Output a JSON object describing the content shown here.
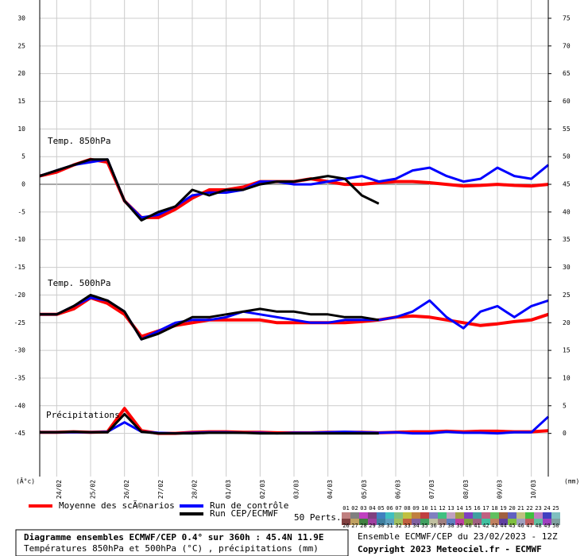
{
  "chart_data": {
    "type": "line",
    "panel_labels": [
      "Temp. 850hPa",
      "Temp. 500hPa",
      "Précipitations"
    ],
    "ylabel": "(Â°c)",
    "y2label": "(mm)",
    "x": [
      0,
      12,
      24,
      36,
      48,
      60,
      72,
      84,
      96,
      108,
      120,
      132,
      144,
      156,
      168,
      180,
      192,
      204,
      216,
      228,
      240,
      252,
      264,
      276,
      288,
      300,
      312,
      324,
      336,
      348,
      360
    ],
    "xlim": [
      0,
      360
    ],
    "xticks": [
      {
        "value": 12,
        "label": "24/02"
      },
      {
        "value": 36,
        "label": "25/02"
      },
      {
        "value": 60,
        "label": "26/02"
      },
      {
        "value": 84,
        "label": "27/02"
      },
      {
        "value": 108,
        "label": "28/02"
      },
      {
        "value": 132,
        "label": "01/03"
      },
      {
        "value": 156,
        "label": "02/03"
      },
      {
        "value": 180,
        "label": "03/03"
      },
      {
        "value": 204,
        "label": "04/03"
      },
      {
        "value": 228,
        "label": "05/03"
      },
      {
        "value": 252,
        "label": "06/03"
      },
      {
        "value": 276,
        "label": "07/03"
      },
      {
        "value": 300,
        "label": "08/03"
      },
      {
        "value": 324,
        "label": "09/03"
      },
      {
        "value": 348,
        "label": "10/03"
      }
    ],
    "ylim": [
      -52.8,
      33.3
    ],
    "yticks": [
      30,
      25,
      20,
      15,
      10,
      5,
      0,
      -5,
      -10,
      -15,
      -20,
      -25,
      -30,
      -35,
      -40,
      -45
    ],
    "y2lim": [
      -7.8,
      78.3
    ],
    "y2ticks": [
      75,
      70,
      65,
      60,
      55,
      50,
      45,
      40,
      35,
      30,
      25,
      20,
      15,
      10,
      5,
      0
    ],
    "series": [
      {
        "name": "Moyenne des scÃ©narios",
        "color": "#ff0000",
        "width": 4,
        "t850": [
          1.5,
          2.2,
          3.5,
          4.5,
          4,
          -3,
          -6,
          -6,
          -4.5,
          -2.5,
          -1,
          -1,
          -0.5,
          0.5,
          0.5,
          0.5,
          1,
          0.5,
          0,
          0,
          0.3,
          0.5,
          0.5,
          0.3,
          0,
          -0.3,
          -0.2,
          0,
          -0.2,
          -0.3,
          0
        ],
        "t500": [
          -23.5,
          -23.5,
          -22.5,
          -20.5,
          -21.5,
          -23.5,
          -27.5,
          -26.5,
          -25.5,
          -25,
          -24.5,
          -24.5,
          -24.5,
          -24.5,
          -25,
          -25,
          -25,
          -25,
          -25,
          -24.8,
          -24.5,
          -24,
          -23.8,
          -24,
          -24.5,
          -25,
          -25.5,
          -25.2,
          -24.8,
          -24.5,
          -23.5
        ],
        "precip": [
          0.2,
          0.2,
          0.3,
          0.2,
          0.3,
          4.5,
          0.5,
          0,
          0,
          0.2,
          0.3,
          0.3,
          0.2,
          0.2,
          0.1,
          0.1,
          0.1,
          0.2,
          0.2,
          0.2,
          0.1,
          0.2,
          0.3,
          0.3,
          0.4,
          0.3,
          0.4,
          0.4,
          0.3,
          0.3,
          0.5
        ]
      },
      {
        "name": "Run de contrôle",
        "color": "#0000ff",
        "width": 3,
        "t850": [
          1.5,
          2.5,
          3.5,
          4,
          4.5,
          -3,
          -6,
          -5.5,
          -4,
          -2,
          -1.5,
          -1.5,
          -1,
          0.5,
          0.5,
          0,
          0,
          0.5,
          1,
          1.5,
          0.5,
          1,
          2.5,
          3,
          1.5,
          0.5,
          1,
          3,
          1.5,
          1,
          3.5
        ],
        "t500": [
          -23.5,
          -23.5,
          -22,
          -20.5,
          -21,
          -23,
          -28,
          -26.5,
          -25,
          -24.5,
          -24.5,
          -24,
          -23,
          -23.5,
          -24,
          -24.5,
          -25,
          -25,
          -24.5,
          -24.5,
          -24.5,
          -24,
          -23,
          -21,
          -24,
          -26,
          -23,
          -22,
          -24,
          -22,
          -21
        ],
        "precip": [
          0.2,
          0.2,
          0.2,
          0.2,
          0.3,
          2,
          0.3,
          0.1,
          0,
          0.1,
          0.2,
          0.2,
          0.1,
          0.1,
          0,
          0.1,
          0.1,
          0.2,
          0.3,
          0.2,
          0.1,
          0.2,
          0,
          0,
          0.3,
          0.1,
          0.1,
          0,
          0.2,
          0.2,
          3
        ]
      },
      {
        "name": "Run CEP/ECMWF",
        "color": "#000000",
        "width": 3,
        "t850": [
          1.5,
          2.5,
          3.5,
          4.5,
          4.5,
          -3,
          -6.5,
          -5,
          -4,
          -1,
          -2,
          -1,
          -1,
          0,
          0.5,
          0.5,
          1,
          1.5,
          1,
          -2,
          -3.5,
          null,
          null,
          null,
          null,
          null,
          null,
          null,
          null,
          null,
          null
        ],
        "t500": [
          -23.5,
          -23.5,
          -22,
          -20,
          -21,
          -23,
          -28,
          -27,
          -25.5,
          -24,
          -24,
          -23.5,
          -23,
          -22.5,
          -23,
          -23,
          -23.5,
          -23.5,
          -24,
          -24,
          -24.5,
          null,
          null,
          null,
          null,
          null,
          null,
          null,
          null,
          null,
          null
        ],
        "precip": [
          0.2,
          0.2,
          0.3,
          0.2,
          0.2,
          3.5,
          0.3,
          0,
          0,
          0,
          0.1,
          0.1,
          0.1,
          0,
          0,
          0,
          0,
          0,
          0,
          0,
          0,
          null,
          null,
          null,
          null,
          null,
          null,
          null,
          null,
          null,
          null
        ]
      }
    ],
    "perturbations_title": "50 Perts.",
    "perturbations": [
      "01",
      "02",
      "03",
      "04",
      "05",
      "06",
      "07",
      "08",
      "09",
      "10",
      "11",
      "12",
      "13",
      "14",
      "15",
      "16",
      "17",
      "18",
      "19",
      "20",
      "21",
      "22",
      "23",
      "24",
      "25",
      "26",
      "27",
      "28",
      "29",
      "30",
      "31",
      "32",
      "33",
      "34",
      "35",
      "36",
      "37",
      "38",
      "39",
      "40",
      "41",
      "42",
      "43",
      "44",
      "45",
      "46",
      "47",
      "48",
      "49",
      "50"
    ],
    "perturbation_colors": [
      "#c08080",
      "#808080",
      "#c040c0",
      "#804080",
      "#4080c0",
      "#40c0c0",
      "#80c080",
      "#c0c040",
      "#c08040",
      "#c04040",
      "#8080c0",
      "#40c080",
      "#c0a0c0",
      "#a0a040",
      "#8040c0",
      "#40a0a0",
      "#c06080",
      "#60c060",
      "#a06040",
      "#6060c0",
      "#c0c080",
      "#40c040",
      "#c080c0",
      "#4040c0",
      "#80c0c0",
      "#804040",
      "#c0a060",
      "#408040",
      "#a040a0",
      "#4080a0",
      "#60a0c0",
      "#a0c060",
      "#c06040",
      "#8060a0",
      "#40a060",
      "#c0c0a0",
      "#a08080",
      "#6080c0",
      "#c040a0",
      "#80a040",
      "#a06080",
      "#40c0a0",
      "#c08060",
      "#6040a0",
      "#80c040",
      "#a0a0c0",
      "#c06060",
      "#60c0a0",
      "#a040c0",
      "#80a0a0"
    ],
    "caption": [
      "Diagramme ensembles ECMWF/CEP 0.4° sur 360h : 45.4N 11.9E",
      "Températures 850hPa et 500hPa (°C) , précipitations (mm)"
    ],
    "run_info": "Ensemble ECMWF/CEP du 23/02/2023 - 12Z",
    "copyright": "Copyright 2023 Meteociel.fr - ECMWF"
  }
}
